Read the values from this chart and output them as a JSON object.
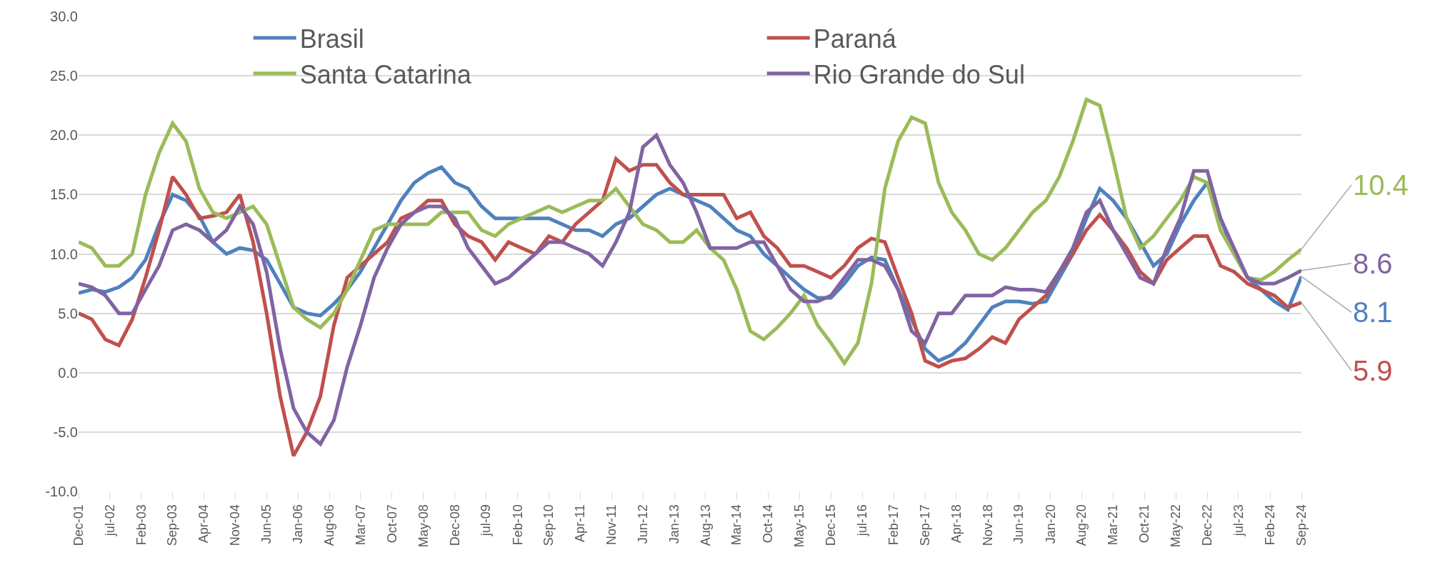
{
  "chart_data": {
    "type": "line",
    "x": [
      "2001-12",
      "2002-03",
      "2002-06",
      "2002-09",
      "2002-12",
      "2003-03",
      "2003-06",
      "2003-09",
      "2003-12",
      "2004-03",
      "2004-06",
      "2004-09",
      "2004-12",
      "2005-03",
      "2005-06",
      "2005-09",
      "2005-12",
      "2006-03",
      "2006-06",
      "2006-09",
      "2006-12",
      "2007-03",
      "2007-06",
      "2007-09",
      "2007-12",
      "2008-03",
      "2008-06",
      "2008-09",
      "2008-12",
      "2009-03",
      "2009-06",
      "2009-09",
      "2009-12",
      "2010-03",
      "2010-06",
      "2010-09",
      "2010-12",
      "2011-03",
      "2011-06",
      "2011-09",
      "2011-12",
      "2012-03",
      "2012-06",
      "2012-09",
      "2012-12",
      "2013-03",
      "2013-06",
      "2013-09",
      "2013-12",
      "2014-03",
      "2014-06",
      "2014-09",
      "2014-12",
      "2015-03",
      "2015-06",
      "2015-09",
      "2015-12",
      "2016-03",
      "2016-06",
      "2016-09",
      "2016-12",
      "2017-03",
      "2017-06",
      "2017-09",
      "2017-12",
      "2018-03",
      "2018-06",
      "2018-09",
      "2018-12",
      "2019-03",
      "2019-06",
      "2019-09",
      "2019-12",
      "2020-03",
      "2020-06",
      "2020-09",
      "2020-12",
      "2021-03",
      "2021-06",
      "2021-09",
      "2021-12",
      "2022-03",
      "2022-06",
      "2022-09",
      "2022-12",
      "2023-03",
      "2023-06",
      "2023-09",
      "2023-12",
      "2024-03",
      "2024-06",
      "2024-09"
    ],
    "series": [
      {
        "name": "Brasil",
        "color": "#4f81bd",
        "values": [
          6.7,
          7.0,
          6.8,
          7.2,
          8.0,
          9.5,
          12.5,
          15.0,
          14.5,
          13.2,
          11.0,
          10.0,
          10.5,
          10.3,
          9.5,
          7.5,
          5.5,
          5.0,
          4.8,
          5.8,
          7.0,
          8.5,
          10.5,
          12.5,
          14.5,
          16.0,
          16.8,
          17.3,
          16.0,
          15.5,
          14.0,
          13.0,
          13.0,
          13.0,
          13.0,
          13.0,
          12.5,
          12.0,
          12.0,
          11.5,
          12.5,
          13.0,
          14.0,
          15.0,
          15.5,
          15.0,
          14.5,
          14.0,
          13.0,
          12.0,
          11.5,
          10.0,
          9.0,
          8.0,
          7.0,
          6.3,
          6.3,
          7.5,
          9.0,
          9.7,
          9.5,
          7.0,
          4.5,
          2.0,
          1.0,
          1.5,
          2.5,
          4.0,
          5.5,
          6.0,
          6.0,
          5.8,
          6.0,
          8.0,
          10.0,
          13.0,
          15.5,
          14.5,
          13.0,
          11.0,
          9.0,
          10.0,
          12.5,
          14.5,
          16.0,
          13.0,
          10.0,
          8.0,
          7.0,
          6.0,
          5.3,
          8.1
        ]
      },
      {
        "name": "Paraná",
        "color": "#c0504d",
        "values": [
          5.0,
          4.5,
          2.8,
          2.3,
          4.5,
          8.0,
          12.0,
          16.5,
          15.0,
          13.0,
          13.2,
          13.5,
          15.0,
          11.0,
          5.0,
          -2.0,
          -7.0,
          -5.0,
          -2.0,
          4.0,
          8.0,
          9.0,
          10.0,
          11.0,
          13.0,
          13.5,
          14.5,
          14.5,
          12.5,
          11.5,
          11.0,
          9.5,
          11.0,
          10.5,
          10.0,
          11.5,
          11.0,
          12.5,
          13.5,
          14.5,
          18.0,
          17.0,
          17.5,
          17.5,
          16.0,
          15.0,
          15.0,
          15.0,
          15.0,
          13.0,
          13.5,
          11.5,
          10.5,
          9.0,
          9.0,
          8.5,
          8.0,
          9.0,
          10.5,
          11.3,
          11.0,
          8.0,
          5.0,
          1.0,
          0.5,
          1.0,
          1.2,
          2.0,
          3.0,
          2.5,
          4.5,
          5.5,
          6.5,
          8.5,
          10.0,
          12.0,
          13.3,
          12.0,
          10.5,
          8.5,
          7.5,
          9.5,
          10.5,
          11.5,
          11.5,
          9.0,
          8.5,
          7.5,
          7.0,
          6.5,
          5.5,
          5.9
        ]
      },
      {
        "name": "Santa Catarina",
        "color": "#9bbb59",
        "values": [
          11.0,
          10.5,
          9.0,
          9.0,
          10.0,
          15.0,
          18.5,
          21.0,
          19.5,
          15.5,
          13.5,
          13.0,
          13.5,
          14.0,
          12.5,
          9.0,
          5.5,
          4.5,
          3.8,
          5.0,
          7.0,
          9.5,
          12.0,
          12.5,
          12.5,
          12.5,
          12.5,
          13.5,
          13.5,
          13.5,
          12.0,
          11.5,
          12.5,
          13.0,
          13.5,
          14.0,
          13.5,
          14.0,
          14.5,
          14.5,
          15.5,
          14.0,
          12.5,
          12.0,
          11.0,
          11.0,
          12.0,
          10.5,
          9.5,
          7.0,
          3.5,
          2.8,
          3.8,
          5.0,
          6.5,
          4.0,
          2.5,
          0.8,
          2.5,
          7.5,
          15.5,
          19.5,
          21.5,
          21.0,
          16.0,
          13.5,
          12.0,
          10.0,
          9.5,
          10.5,
          12.0,
          13.5,
          14.5,
          16.5,
          19.5,
          23.0,
          22.5,
          18.0,
          13.0,
          10.5,
          11.5,
          13.0,
          14.5,
          16.5,
          16.0,
          12.0,
          10.0,
          8.0,
          7.8,
          8.5,
          9.5,
          10.4
        ]
      },
      {
        "name": "Rio Grande do Sul",
        "color": "#8064a2",
        "values": [
          7.5,
          7.2,
          6.5,
          5.0,
          5.0,
          7.0,
          9.0,
          12.0,
          12.5,
          12.0,
          11.0,
          12.0,
          14.0,
          12.5,
          8.5,
          2.0,
          -3.0,
          -5.0,
          -6.0,
          -4.0,
          0.5,
          4.0,
          8.0,
          10.5,
          12.5,
          13.5,
          14.0,
          14.0,
          13.0,
          10.5,
          9.0,
          7.5,
          8.0,
          9.0,
          10.0,
          11.0,
          11.0,
          10.5,
          10.0,
          9.0,
          11.0,
          13.5,
          19.0,
          20.0,
          17.5,
          16.0,
          13.5,
          10.5,
          10.5,
          10.5,
          11.0,
          11.0,
          9.0,
          7.0,
          6.0,
          6.0,
          6.5,
          8.0,
          9.5,
          9.5,
          9.0,
          7.0,
          3.5,
          2.5,
          5.0,
          5.0,
          6.5,
          6.5,
          6.5,
          7.2,
          7.0,
          7.0,
          6.8,
          8.5,
          10.5,
          13.5,
          14.5,
          12.0,
          10.0,
          8.0,
          7.5,
          10.5,
          13.0,
          17.0,
          17.0,
          13.0,
          10.5,
          8.0,
          7.5,
          7.5,
          8.0,
          8.6
        ]
      }
    ],
    "ylim": [
      -10,
      30
    ],
    "yticks": [
      {
        "value": -10,
        "label": "-10.0"
      },
      {
        "value": -5,
        "label": "-5.0"
      },
      {
        "value": 0,
        "label": "0.0"
      },
      {
        "value": 5,
        "label": "5.0"
      },
      {
        "value": 10,
        "label": "10.0"
      },
      {
        "value": 15,
        "label": "15.0"
      },
      {
        "value": 20,
        "label": "20.0"
      },
      {
        "value": 25,
        "label": "25.0"
      },
      {
        "value": 30,
        "label": "30.0"
      }
    ],
    "xlim": [
      "2001-12",
      "2024-09"
    ],
    "xticks": [
      {
        "value": "2001-12",
        "label": "Dec-01"
      },
      {
        "value": "2002-07",
        "label": "jul-02"
      },
      {
        "value": "2003-02",
        "label": "Feb-03"
      },
      {
        "value": "2003-09",
        "label": "Sep-03"
      },
      {
        "value": "2004-04",
        "label": "Apr-04"
      },
      {
        "value": "2004-11",
        "label": "Nov-04"
      },
      {
        "value": "2005-06",
        "label": "Jun-05"
      },
      {
        "value": "2006-01",
        "label": "Jan-06"
      },
      {
        "value": "2006-08",
        "label": "Aug-06"
      },
      {
        "value": "2007-03",
        "label": "Mar-07"
      },
      {
        "value": "2007-10",
        "label": "Oct-07"
      },
      {
        "value": "2008-05",
        "label": "May-08"
      },
      {
        "value": "2008-12",
        "label": "Dec-08"
      },
      {
        "value": "2009-07",
        "label": "jul-09"
      },
      {
        "value": "2010-02",
        "label": "Feb-10"
      },
      {
        "value": "2010-09",
        "label": "Sep-10"
      },
      {
        "value": "2011-04",
        "label": "Apr-11"
      },
      {
        "value": "2011-11",
        "label": "Nov-11"
      },
      {
        "value": "2012-06",
        "label": "Jun-12"
      },
      {
        "value": "2013-01",
        "label": "Jan-13"
      },
      {
        "value": "2013-08",
        "label": "Aug-13"
      },
      {
        "value": "2014-03",
        "label": "Mar-14"
      },
      {
        "value": "2014-10",
        "label": "Oct-14"
      },
      {
        "value": "2015-05",
        "label": "May-15"
      },
      {
        "value": "2015-12",
        "label": "Dec-15"
      },
      {
        "value": "2016-07",
        "label": "jul-16"
      },
      {
        "value": "2017-02",
        "label": "Feb-17"
      },
      {
        "value": "2017-09",
        "label": "Sep-17"
      },
      {
        "value": "2018-04",
        "label": "Apr-18"
      },
      {
        "value": "2018-11",
        "label": "Nov-18"
      },
      {
        "value": "2019-06",
        "label": "Jun-19"
      },
      {
        "value": "2020-01",
        "label": "Jan-20"
      },
      {
        "value": "2020-08",
        "label": "Aug-20"
      },
      {
        "value": "2021-03",
        "label": "Mar-21"
      },
      {
        "value": "2021-10",
        "label": "Oct-21"
      },
      {
        "value": "2022-05",
        "label": "May-22"
      },
      {
        "value": "2022-12",
        "label": "Dec-22"
      },
      {
        "value": "2023-07",
        "label": "jul-23"
      },
      {
        "value": "2024-02",
        "label": "Feb-24"
      },
      {
        "value": "2024-09",
        "label": "Sep-24"
      }
    ],
    "annotations": [
      {
        "text": "8.1",
        "x": "2024-09",
        "y": 8.1
      },
      {
        "text": "5.9",
        "x": "2024-09",
        "y": 5.9
      },
      {
        "text": "10.4",
        "x": "2024-09",
        "y": 10.4
      },
      {
        "text": "8.6",
        "x": "2024-09",
        "y": 8.6
      }
    ],
    "grid": "y",
    "legend": "top",
    "marker": "none",
    "line_style": "solid"
  }
}
